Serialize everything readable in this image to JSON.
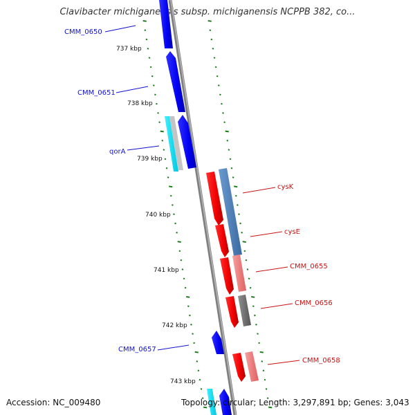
{
  "title": "Clavibacter michiganensis subsp. michiganensis NCPPB 382, co...",
  "footer": {
    "accession": "Accession: NC_009480",
    "topology": "Topology: circular; Length: 3,297,891 bp; Genes: 3,043"
  },
  "ticks": [
    "737 kbp",
    "738 kbp",
    "739 kbp",
    "740 kbp",
    "741 kbp",
    "742 kbp",
    "743 kbp"
  ],
  "genes": [
    {
      "label": "CMM_0650",
      "strand": "left",
      "color": "#1010e0"
    },
    {
      "label": "CMM_0651",
      "strand": "left",
      "color": "#1010e0"
    },
    {
      "label": "qorA",
      "strand": "left",
      "color": "#1010e0"
    },
    {
      "label": "cysK",
      "strand": "right",
      "color": "#d41010"
    },
    {
      "label": "cysE",
      "strand": "right",
      "color": "#d41010"
    },
    {
      "label": "CMM_0655",
      "strand": "right",
      "color": "#d41010"
    },
    {
      "label": "CMM_0656",
      "strand": "right",
      "color": "#d41010"
    },
    {
      "label": "CMM_0657",
      "strand": "left",
      "color": "#1010e0"
    },
    {
      "label": "CMM_0658",
      "strand": "right",
      "color": "#d41010"
    }
  ],
  "colors": {
    "forward_gene": "#ff1a1a",
    "reverse_gene": "#1a1aff",
    "backbone": "#7a7a7a",
    "tick_marks": "#1a7a1a",
    "cyan_feature": "#00e5ff",
    "steelblue_feature": "#4a7fb8",
    "pink_feature": "#f08080",
    "gray_feature": "#7f7f7f"
  }
}
